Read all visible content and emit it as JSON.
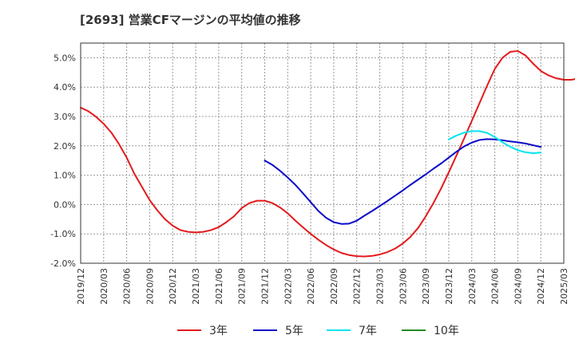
{
  "chart_data": {
    "type": "line",
    "title": "[2693]  営業CFマージンの平均値の推移",
    "xlabel": "",
    "ylabel": "",
    "ylim": [
      -2.0,
      5.5
    ],
    "y_ticks": [
      5.0,
      4.0,
      3.0,
      2.0,
      1.0,
      0.0,
      -1.0,
      -2.0
    ],
    "y_tick_labels": [
      "5.0%",
      "4.0%",
      "3.0%",
      "2.0%",
      "1.0%",
      "0.0%",
      "-1.0%",
      "-2.0%"
    ],
    "x_range": [
      "2019/12",
      "2025/03"
    ],
    "x_tick_labels": [
      "2019/12",
      "2020/03",
      "2020/06",
      "2020/09",
      "2020/12",
      "2021/03",
      "2021/06",
      "2021/09",
      "2021/12",
      "2022/03",
      "2022/06",
      "2022/09",
      "2022/12",
      "2023/03",
      "2023/06",
      "2023/09",
      "2023/12",
      "2024/03",
      "2024/06",
      "2024/09",
      "2024/12",
      "2025/03"
    ],
    "grid": true,
    "legend_position": "bottom",
    "series": [
      {
        "name": "3年",
        "color": "#e41a1c",
        "points": [
          [
            "2019/12",
            3.3
          ],
          [
            "2020/01",
            3.18
          ],
          [
            "2020/02",
            2.99
          ],
          [
            "2020/03",
            2.75
          ],
          [
            "2020/04",
            2.45
          ],
          [
            "2020/05",
            2.06
          ],
          [
            "2020/06",
            1.6
          ],
          [
            "2020/07",
            1.05
          ],
          [
            "2020/08",
            0.6
          ],
          [
            "2020/09",
            0.15
          ],
          [
            "2020/10",
            -0.2
          ],
          [
            "2020/11",
            -0.5
          ],
          [
            "2020/12",
            -0.72
          ],
          [
            "2021/01",
            -0.87
          ],
          [
            "2021/02",
            -0.93
          ],
          [
            "2021/03",
            -0.95
          ],
          [
            "2021/04",
            -0.93
          ],
          [
            "2021/05",
            -0.87
          ],
          [
            "2021/06",
            -0.77
          ],
          [
            "2021/07",
            -0.6
          ],
          [
            "2021/08",
            -0.4
          ],
          [
            "2021/09",
            -0.12
          ],
          [
            "2021/10",
            0.05
          ],
          [
            "2021/11",
            0.13
          ],
          [
            "2021/12",
            0.13
          ],
          [
            "2022/01",
            0.05
          ],
          [
            "2022/02",
            -0.1
          ],
          [
            "2022/03",
            -0.3
          ],
          [
            "2022/04",
            -0.55
          ],
          [
            "2022/05",
            -0.78
          ],
          [
            "2022/06",
            -1.0
          ],
          [
            "2022/07",
            -1.2
          ],
          [
            "2022/08",
            -1.38
          ],
          [
            "2022/09",
            -1.53
          ],
          [
            "2022/10",
            -1.65
          ],
          [
            "2022/11",
            -1.72
          ],
          [
            "2022/12",
            -1.76
          ],
          [
            "2023/01",
            -1.77
          ],
          [
            "2023/02",
            -1.75
          ],
          [
            "2023/03",
            -1.7
          ],
          [
            "2023/04",
            -1.62
          ],
          [
            "2023/05",
            -1.5
          ],
          [
            "2023/06",
            -1.33
          ],
          [
            "2023/07",
            -1.1
          ],
          [
            "2023/08",
            -0.8
          ],
          [
            "2023/09",
            -0.4
          ],
          [
            "2023/10",
            0.05
          ],
          [
            "2023/11",
            0.55
          ],
          [
            "2023/12",
            1.1
          ],
          [
            "2024/01",
            1.67
          ],
          [
            "2024/02",
            2.25
          ],
          [
            "2024/03",
            2.85
          ],
          [
            "2024/04",
            3.45
          ],
          [
            "2024/05",
            4.05
          ],
          [
            "2024/06",
            4.62
          ],
          [
            "2024/07",
            5.0
          ],
          [
            "2024/08",
            5.2
          ],
          [
            "2024/09",
            5.23
          ],
          [
            "2024/10",
            5.08
          ],
          [
            "2024/11",
            4.8
          ],
          [
            "2024/12",
            4.55
          ],
          [
            "2025/01",
            4.4
          ],
          [
            "2025/02",
            4.3
          ],
          [
            "2025/03",
            4.25
          ],
          [
            "2025/04",
            4.25
          ],
          [
            "2025/05",
            4.3
          ]
        ]
      },
      {
        "name": "5年",
        "color": "#0a0ac8",
        "points": [
          [
            "2021/12",
            1.5
          ],
          [
            "2022/01",
            1.35
          ],
          [
            "2022/02",
            1.15
          ],
          [
            "2022/03",
            0.92
          ],
          [
            "2022/04",
            0.67
          ],
          [
            "2022/05",
            0.38
          ],
          [
            "2022/06",
            0.08
          ],
          [
            "2022/07",
            -0.22
          ],
          [
            "2022/08",
            -0.45
          ],
          [
            "2022/09",
            -0.6
          ],
          [
            "2022/10",
            -0.66
          ],
          [
            "2022/11",
            -0.65
          ],
          [
            "2022/12",
            -0.55
          ],
          [
            "2023/01",
            -0.38
          ],
          [
            "2023/02",
            -0.22
          ],
          [
            "2023/03",
            -0.05
          ],
          [
            "2023/04",
            0.12
          ],
          [
            "2023/05",
            0.3
          ],
          [
            "2023/06",
            0.48
          ],
          [
            "2023/07",
            0.67
          ],
          [
            "2023/08",
            0.85
          ],
          [
            "2023/09",
            1.03
          ],
          [
            "2023/10",
            1.22
          ],
          [
            "2023/11",
            1.4
          ],
          [
            "2023/12",
            1.6
          ],
          [
            "2024/01",
            1.8
          ],
          [
            "2024/02",
            1.98
          ],
          [
            "2024/03",
            2.11
          ],
          [
            "2024/04",
            2.2
          ],
          [
            "2024/05",
            2.23
          ],
          [
            "2024/06",
            2.22
          ],
          [
            "2024/07",
            2.19
          ],
          [
            "2024/08",
            2.15
          ],
          [
            "2024/09",
            2.12
          ],
          [
            "2024/10",
            2.08
          ],
          [
            "2024/11",
            2.02
          ],
          [
            "2024/12",
            1.96
          ]
        ]
      },
      {
        "name": "7年",
        "color": "#00e5ee",
        "points": [
          [
            "2023/12",
            2.22
          ],
          [
            "2024/01",
            2.35
          ],
          [
            "2024/02",
            2.45
          ],
          [
            "2024/03",
            2.5
          ],
          [
            "2024/04",
            2.5
          ],
          [
            "2024/05",
            2.44
          ],
          [
            "2024/06",
            2.3
          ],
          [
            "2024/07",
            2.12
          ],
          [
            "2024/08",
            1.97
          ],
          [
            "2024/09",
            1.85
          ],
          [
            "2024/10",
            1.78
          ],
          [
            "2024/11",
            1.75
          ],
          [
            "2024/12",
            1.77
          ]
        ]
      },
      {
        "name": "10年",
        "color": "#228b22",
        "points": []
      }
    ]
  }
}
